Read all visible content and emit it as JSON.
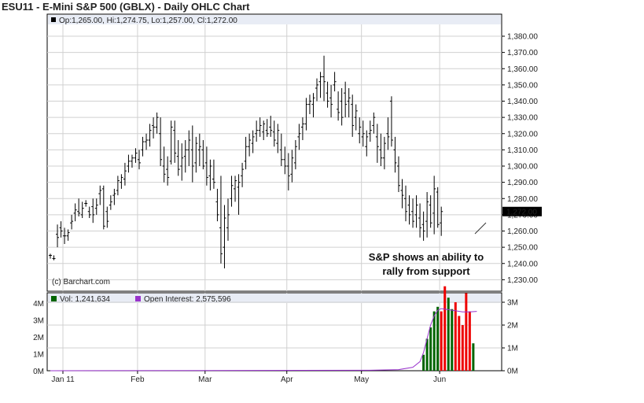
{
  "title": "ESU11 - E-Mini S&P 500 (GBLX) - Daily OHLC Chart",
  "price_info": "Op:1,265.00, Hi:1,274.75, Lo:1,257.00, Cl:1,272.00",
  "copyright": "(c) Barchart.com",
  "last_price_label": "1,272.00",
  "annotation": [
    "S&P shows an ability to",
    "rally from support"
  ],
  "volume_legend": "Vol: 1,241,634",
  "oi_legend": "Open Interest: 2,575,596",
  "colors": {
    "bar": "#000000",
    "grid": "#d0d0d0",
    "frame": "#000000",
    "vol_up": "#006400",
    "vol_down": "#ee0000",
    "oi_line": "#9933cc",
    "info_bg": "#e8ecf5",
    "last_tag_bg": "#000000",
    "last_tag_fg": "#ffffff"
  },
  "chart_data": [
    {
      "type": "ohlc",
      "price_axis_ticks": [
        "1,380.00",
        "1,370.00",
        "1,360.00",
        "1,350.00",
        "1,340.00",
        "1,330.00",
        "1,320.00",
        "1,310.00",
        "1,300.00",
        "1,290.00",
        "1,280.00",
        "1,270.00",
        "1,260.00",
        "1,250.00",
        "1,240.00",
        "1,230.00"
      ],
      "ylim": [
        1226,
        1384
      ],
      "month_labels": [
        "Jan 11",
        "Feb",
        "Mar",
        "Apr",
        "May",
        "Jun"
      ],
      "month_start_index": [
        0,
        21,
        40,
        63,
        84,
        106
      ],
      "grid": true,
      "ohlc": [
        [
          1245,
          1246,
          1243,
          1245
        ],
        [
          1243,
          1245,
          1242,
          1243
        ],
        [
          1258,
          1264,
          1250,
          1256
        ],
        [
          1262,
          1266,
          1256,
          1260
        ],
        [
          1257,
          1262,
          1252,
          1257
        ],
        [
          1257,
          1261,
          1254,
          1259
        ],
        [
          1265,
          1270,
          1261,
          1266
        ],
        [
          1271,
          1277,
          1266,
          1273
        ],
        [
          1272,
          1280,
          1269,
          1271
        ],
        [
          1270,
          1278,
          1268,
          1274
        ],
        [
          1277,
          1279,
          1275,
          1277
        ],
        [
          1272,
          1275,
          1268,
          1270
        ],
        [
          1275,
          1280,
          1265,
          1270
        ],
        [
          1274,
          1280,
          1270,
          1276
        ],
        [
          1283,
          1288,
          1276,
          1285
        ],
        [
          1286,
          1288,
          1261,
          1263
        ],
        [
          1272,
          1275,
          1262,
          1266
        ],
        [
          1276,
          1282,
          1273,
          1278
        ],
        [
          1282,
          1286,
          1276,
          1283
        ],
        [
          1285,
          1294,
          1282,
          1291
        ],
        [
          1290,
          1295,
          1286,
          1293
        ],
        [
          1292,
          1302,
          1288,
          1297
        ],
        [
          1300,
          1307,
          1296,
          1303
        ],
        [
          1303,
          1307,
          1299,
          1305
        ],
        [
          1305,
          1311,
          1302,
          1308
        ],
        [
          1304,
          1310,
          1298,
          1302
        ],
        [
          1310,
          1318,
          1306,
          1315
        ],
        [
          1315,
          1320,
          1310,
          1316
        ],
        [
          1316,
          1326,
          1312,
          1322
        ],
        [
          1325,
          1330,
          1317,
          1324
        ],
        [
          1324,
          1333,
          1320,
          1330
        ],
        [
          1320,
          1330,
          1300,
          1304
        ],
        [
          1300,
          1312,
          1290,
          1295
        ],
        [
          1298,
          1306,
          1288,
          1293
        ],
        [
          1303,
          1328,
          1301,
          1324
        ],
        [
          1322,
          1328,
          1302,
          1308
        ],
        [
          1306,
          1316,
          1294,
          1298
        ],
        [
          1300,
          1314,
          1291,
          1305
        ],
        [
          1306,
          1316,
          1296,
          1310
        ],
        [
          1310,
          1322,
          1300,
          1316
        ],
        [
          1310,
          1325,
          1290,
          1300
        ],
        [
          1302,
          1318,
          1296,
          1314
        ],
        [
          1310,
          1320,
          1300,
          1312
        ],
        [
          1310,
          1316,
          1298,
          1300
        ],
        [
          1302,
          1312,
          1288,
          1293
        ],
        [
          1294,
          1304,
          1285,
          1300
        ],
        [
          1292,
          1304,
          1286,
          1290
        ],
        [
          1278,
          1286,
          1266,
          1270
        ],
        [
          1262,
          1294,
          1240,
          1246
        ],
        [
          1250,
          1276,
          1237,
          1268
        ],
        [
          1262,
          1280,
          1254,
          1270
        ],
        [
          1280,
          1294,
          1275,
          1288
        ],
        [
          1286,
          1294,
          1278,
          1291
        ],
        [
          1287,
          1295,
          1270,
          1290
        ],
        [
          1294,
          1302,
          1287,
          1298
        ],
        [
          1303,
          1318,
          1298,
          1312
        ],
        [
          1312,
          1320,
          1306,
          1316
        ],
        [
          1314,
          1322,
          1308,
          1318
        ],
        [
          1320,
          1328,
          1315,
          1322
        ],
        [
          1322,
          1330,
          1318,
          1325
        ],
        [
          1321,
          1328,
          1316,
          1326
        ],
        [
          1322,
          1329,
          1318,
          1320
        ],
        [
          1324,
          1331,
          1318,
          1322
        ],
        [
          1321,
          1328,
          1312,
          1316
        ],
        [
          1314,
          1326,
          1308,
          1322
        ],
        [
          1310,
          1320,
          1300,
          1304
        ],
        [
          1304,
          1312,
          1295,
          1300
        ],
        [
          1300,
          1308,
          1285,
          1294
        ],
        [
          1295,
          1310,
          1290,
          1305
        ],
        [
          1302,
          1316,
          1298,
          1312
        ],
        [
          1318,
          1326,
          1310,
          1320
        ],
        [
          1324,
          1330,
          1316,
          1326
        ],
        [
          1326,
          1342,
          1322,
          1338
        ],
        [
          1338,
          1344,
          1332,
          1340
        ],
        [
          1338,
          1345,
          1330,
          1342
        ],
        [
          1348,
          1354,
          1340,
          1350
        ],
        [
          1352,
          1358,
          1342,
          1355
        ],
        [
          1355,
          1368,
          1340,
          1352
        ],
        [
          1345,
          1352,
          1336,
          1340
        ],
        [
          1342,
          1350,
          1330,
          1338
        ],
        [
          1350,
          1358,
          1346,
          1352
        ],
        [
          1335,
          1346,
          1328,
          1333
        ],
        [
          1340,
          1348,
          1325,
          1330
        ],
        [
          1345,
          1352,
          1330,
          1338
        ],
        [
          1340,
          1348,
          1330,
          1342
        ],
        [
          1338,
          1344,
          1318,
          1325
        ],
        [
          1330,
          1338,
          1322,
          1334
        ],
        [
          1320,
          1330,
          1314,
          1324
        ],
        [
          1318,
          1328,
          1312,
          1320
        ],
        [
          1312,
          1322,
          1306,
          1318
        ],
        [
          1320,
          1328,
          1315,
          1322
        ],
        [
          1325,
          1333,
          1320,
          1330
        ],
        [
          1318,
          1326,
          1302,
          1312
        ],
        [
          1310,
          1320,
          1300,
          1305
        ],
        [
          1305,
          1318,
          1298,
          1314
        ],
        [
          1320,
          1330,
          1310,
          1318
        ],
        [
          1340,
          1343,
          1312,
          1316
        ],
        [
          1310,
          1318,
          1296,
          1302
        ],
        [
          1300,
          1306,
          1284,
          1288
        ],
        [
          1285,
          1292,
          1274,
          1282
        ],
        [
          1280,
          1288,
          1266,
          1272
        ],
        [
          1276,
          1282,
          1264,
          1270
        ],
        [
          1272,
          1280,
          1262,
          1266
        ],
        [
          1270,
          1282,
          1262,
          1276
        ],
        [
          1268,
          1277,
          1256,
          1262
        ],
        [
          1264,
          1272,
          1254,
          1260
        ],
        [
          1266,
          1284,
          1256,
          1278
        ],
        [
          1276,
          1282,
          1262,
          1265
        ],
        [
          1271,
          1294,
          1258,
          1286
        ],
        [
          1284,
          1287,
          1262,
          1264
        ],
        [
          1265,
          1275,
          1257,
          1272
        ]
      ]
    },
    {
      "type": "volume",
      "axis_ticks": [
        "4M",
        "3M",
        "2M",
        "1M",
        "0M"
      ],
      "right_ticks": [
        "3M",
        "2M",
        "1M",
        "0M"
      ],
      "ylim": [
        0,
        4
      ],
      "bars": [
        {
          "i": 105,
          "v": 0.7,
          "dir": "up"
        },
        {
          "i": 106,
          "v": 1.4,
          "dir": "up"
        },
        {
          "i": 107,
          "v": 1.9,
          "dir": "up"
        },
        {
          "i": 108,
          "v": 2.6,
          "dir": "up"
        },
        {
          "i": 109,
          "v": 2.8,
          "dir": "up"
        },
        {
          "i": 110,
          "v": 2.6,
          "dir": "down"
        },
        {
          "i": 111,
          "v": 3.7,
          "dir": "down"
        },
        {
          "i": 112,
          "v": 3.2,
          "dir": "up"
        },
        {
          "i": 113,
          "v": 2.7,
          "dir": "up"
        },
        {
          "i": 114,
          "v": 3.0,
          "dir": "down"
        },
        {
          "i": 115,
          "v": 2.4,
          "dir": "down"
        },
        {
          "i": 116,
          "v": 2.0,
          "dir": "down"
        },
        {
          "i": 117,
          "v": 3.4,
          "dir": "down"
        },
        {
          "i": 118,
          "v": 2.6,
          "dir": "down"
        },
        {
          "i": 119,
          "v": 1.2,
          "dir": "up"
        }
      ],
      "open_interest": [
        [
          0,
          0.0
        ],
        [
          90,
          0.02
        ],
        [
          98,
          0.05
        ],
        [
          102,
          0.15
        ],
        [
          104,
          0.4
        ],
        [
          105,
          0.8
        ],
        [
          106,
          1.4
        ],
        [
          107,
          2.0
        ],
        [
          108,
          2.4
        ],
        [
          109,
          2.65
        ],
        [
          110,
          2.72
        ],
        [
          111,
          2.7
        ],
        [
          113,
          2.65
        ],
        [
          116,
          2.58
        ],
        [
          118,
          2.58
        ],
        [
          120,
          2.6
        ]
      ]
    }
  ]
}
